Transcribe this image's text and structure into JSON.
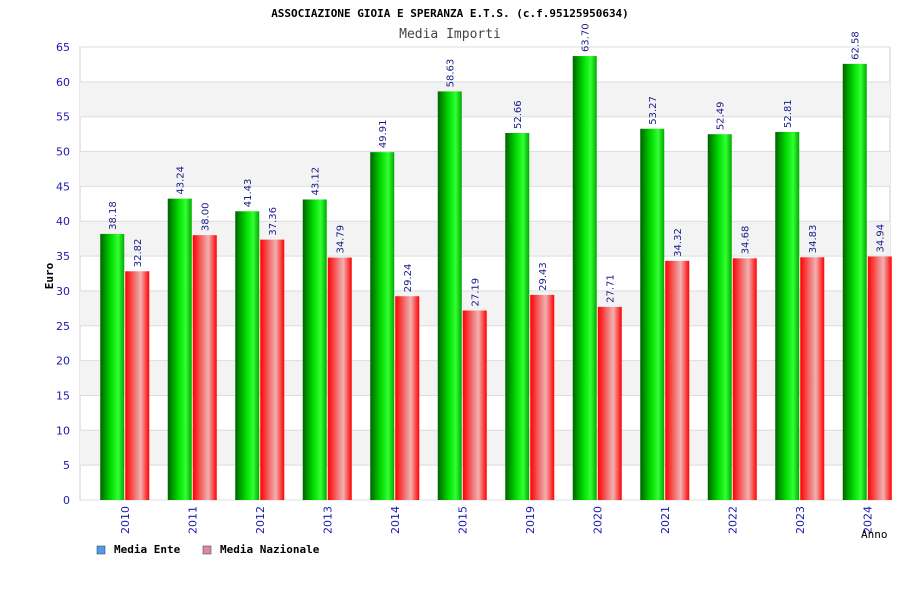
{
  "chart_data": {
    "type": "bar",
    "title": "ASSOCIAZIONE GIOIA E SPERANZA E.T.S. (c.f.95125950634)",
    "subtitle": "Media Importi",
    "xlabel": "Anno",
    "ylabel": "Euro",
    "ylim": [
      0,
      65
    ],
    "ytick_step": 5,
    "grid": true,
    "legend_position": "bottom-left",
    "categories": [
      "2010",
      "2011",
      "2012",
      "2013",
      "2014",
      "2015",
      "2019",
      "2020",
      "2021",
      "2022",
      "2023",
      "2024"
    ],
    "series": [
      {
        "name": "Media Ente",
        "values": [
          38.18,
          43.24,
          41.43,
          43.12,
          49.91,
          58.63,
          52.66,
          63.7,
          53.27,
          52.49,
          52.81,
          62.58
        ],
        "labels": [
          "38.18",
          "43.24",
          "41.43",
          "43.12",
          "49.91",
          "58.63",
          "52.66",
          "63.70",
          "53.27",
          "52.49",
          "52.81",
          "62.58"
        ],
        "color": "#00c000",
        "legend_color": "#5599ee"
      },
      {
        "name": "Media Nazionale",
        "values": [
          32.82,
          38.0,
          37.36,
          34.79,
          29.24,
          27.19,
          29.43,
          27.71,
          34.32,
          34.68,
          34.83,
          34.94
        ],
        "labels": [
          "32.82",
          "38.00",
          "37.36",
          "34.79",
          "29.24",
          "27.19",
          "29.43",
          "27.71",
          "34.32",
          "34.68",
          "34.83",
          "34.94"
        ],
        "color": "#ff0000",
        "legend_color": "#dd88aa"
      }
    ]
  }
}
